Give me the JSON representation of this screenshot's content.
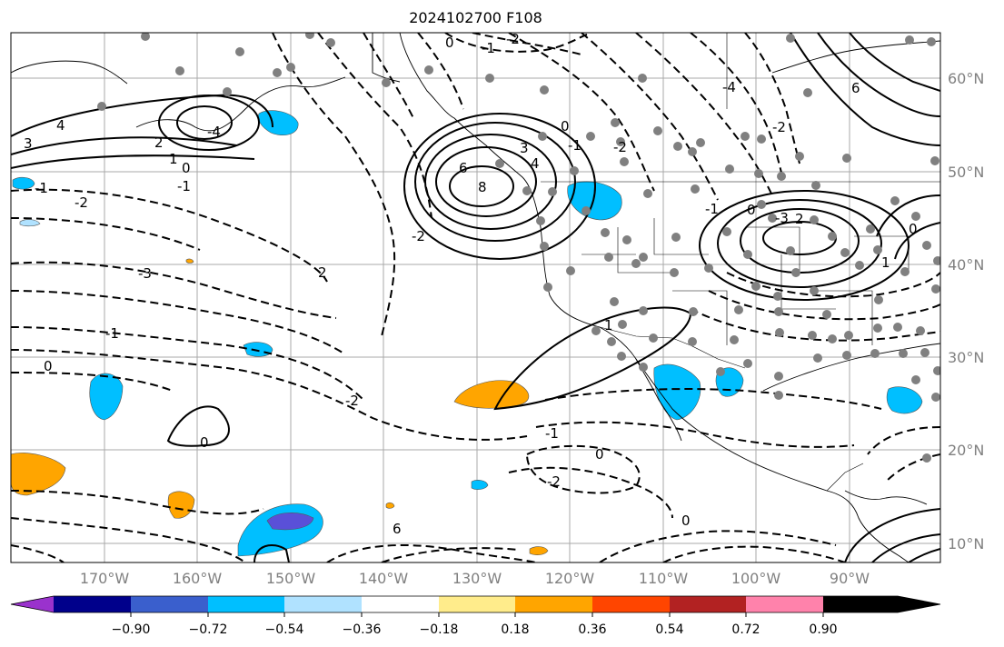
{
  "title": "2024102700 F108",
  "map": {
    "lat_labels": [
      "60°N",
      "50°N",
      "40°N",
      "30°N",
      "20°N",
      "10°N"
    ],
    "lon_labels": [
      "170°W",
      "160°W",
      "150°W",
      "140°W",
      "130°W",
      "120°W",
      "110°W",
      "100°W",
      "90°W"
    ],
    "gridlines": true
  },
  "colorbar": {
    "ticks": [
      "−0.90",
      "−0.72",
      "−0.54",
      "−0.36",
      "−0.18",
      "0.18",
      "0.36",
      "0.54",
      "0.72",
      "0.90"
    ],
    "colors": [
      "#9a32cd",
      "#00008b",
      "#3a5fcd",
      "#00bfff",
      "#b0e2ff",
      "#ffffff",
      "#ffec8b",
      "#ffa500",
      "#ff4500",
      "#b22222",
      "#ff82ab"
    ]
  },
  "contour_labels": [
    "4",
    "3",
    "2",
    "1",
    "0",
    "-1",
    "-2",
    "-3",
    "-4",
    "6",
    "8",
    "0",
    "-1",
    "-2",
    "-1",
    "0",
    "-2",
    "-1",
    "0",
    "-2",
    "6",
    "3",
    "4",
    "1",
    "0",
    "-1",
    "-2",
    "-4",
    "0",
    "-1",
    "-2",
    "-3",
    "2",
    "1",
    "0",
    "2",
    "6",
    "-1",
    "0",
    "-2",
    "0"
  ]
}
